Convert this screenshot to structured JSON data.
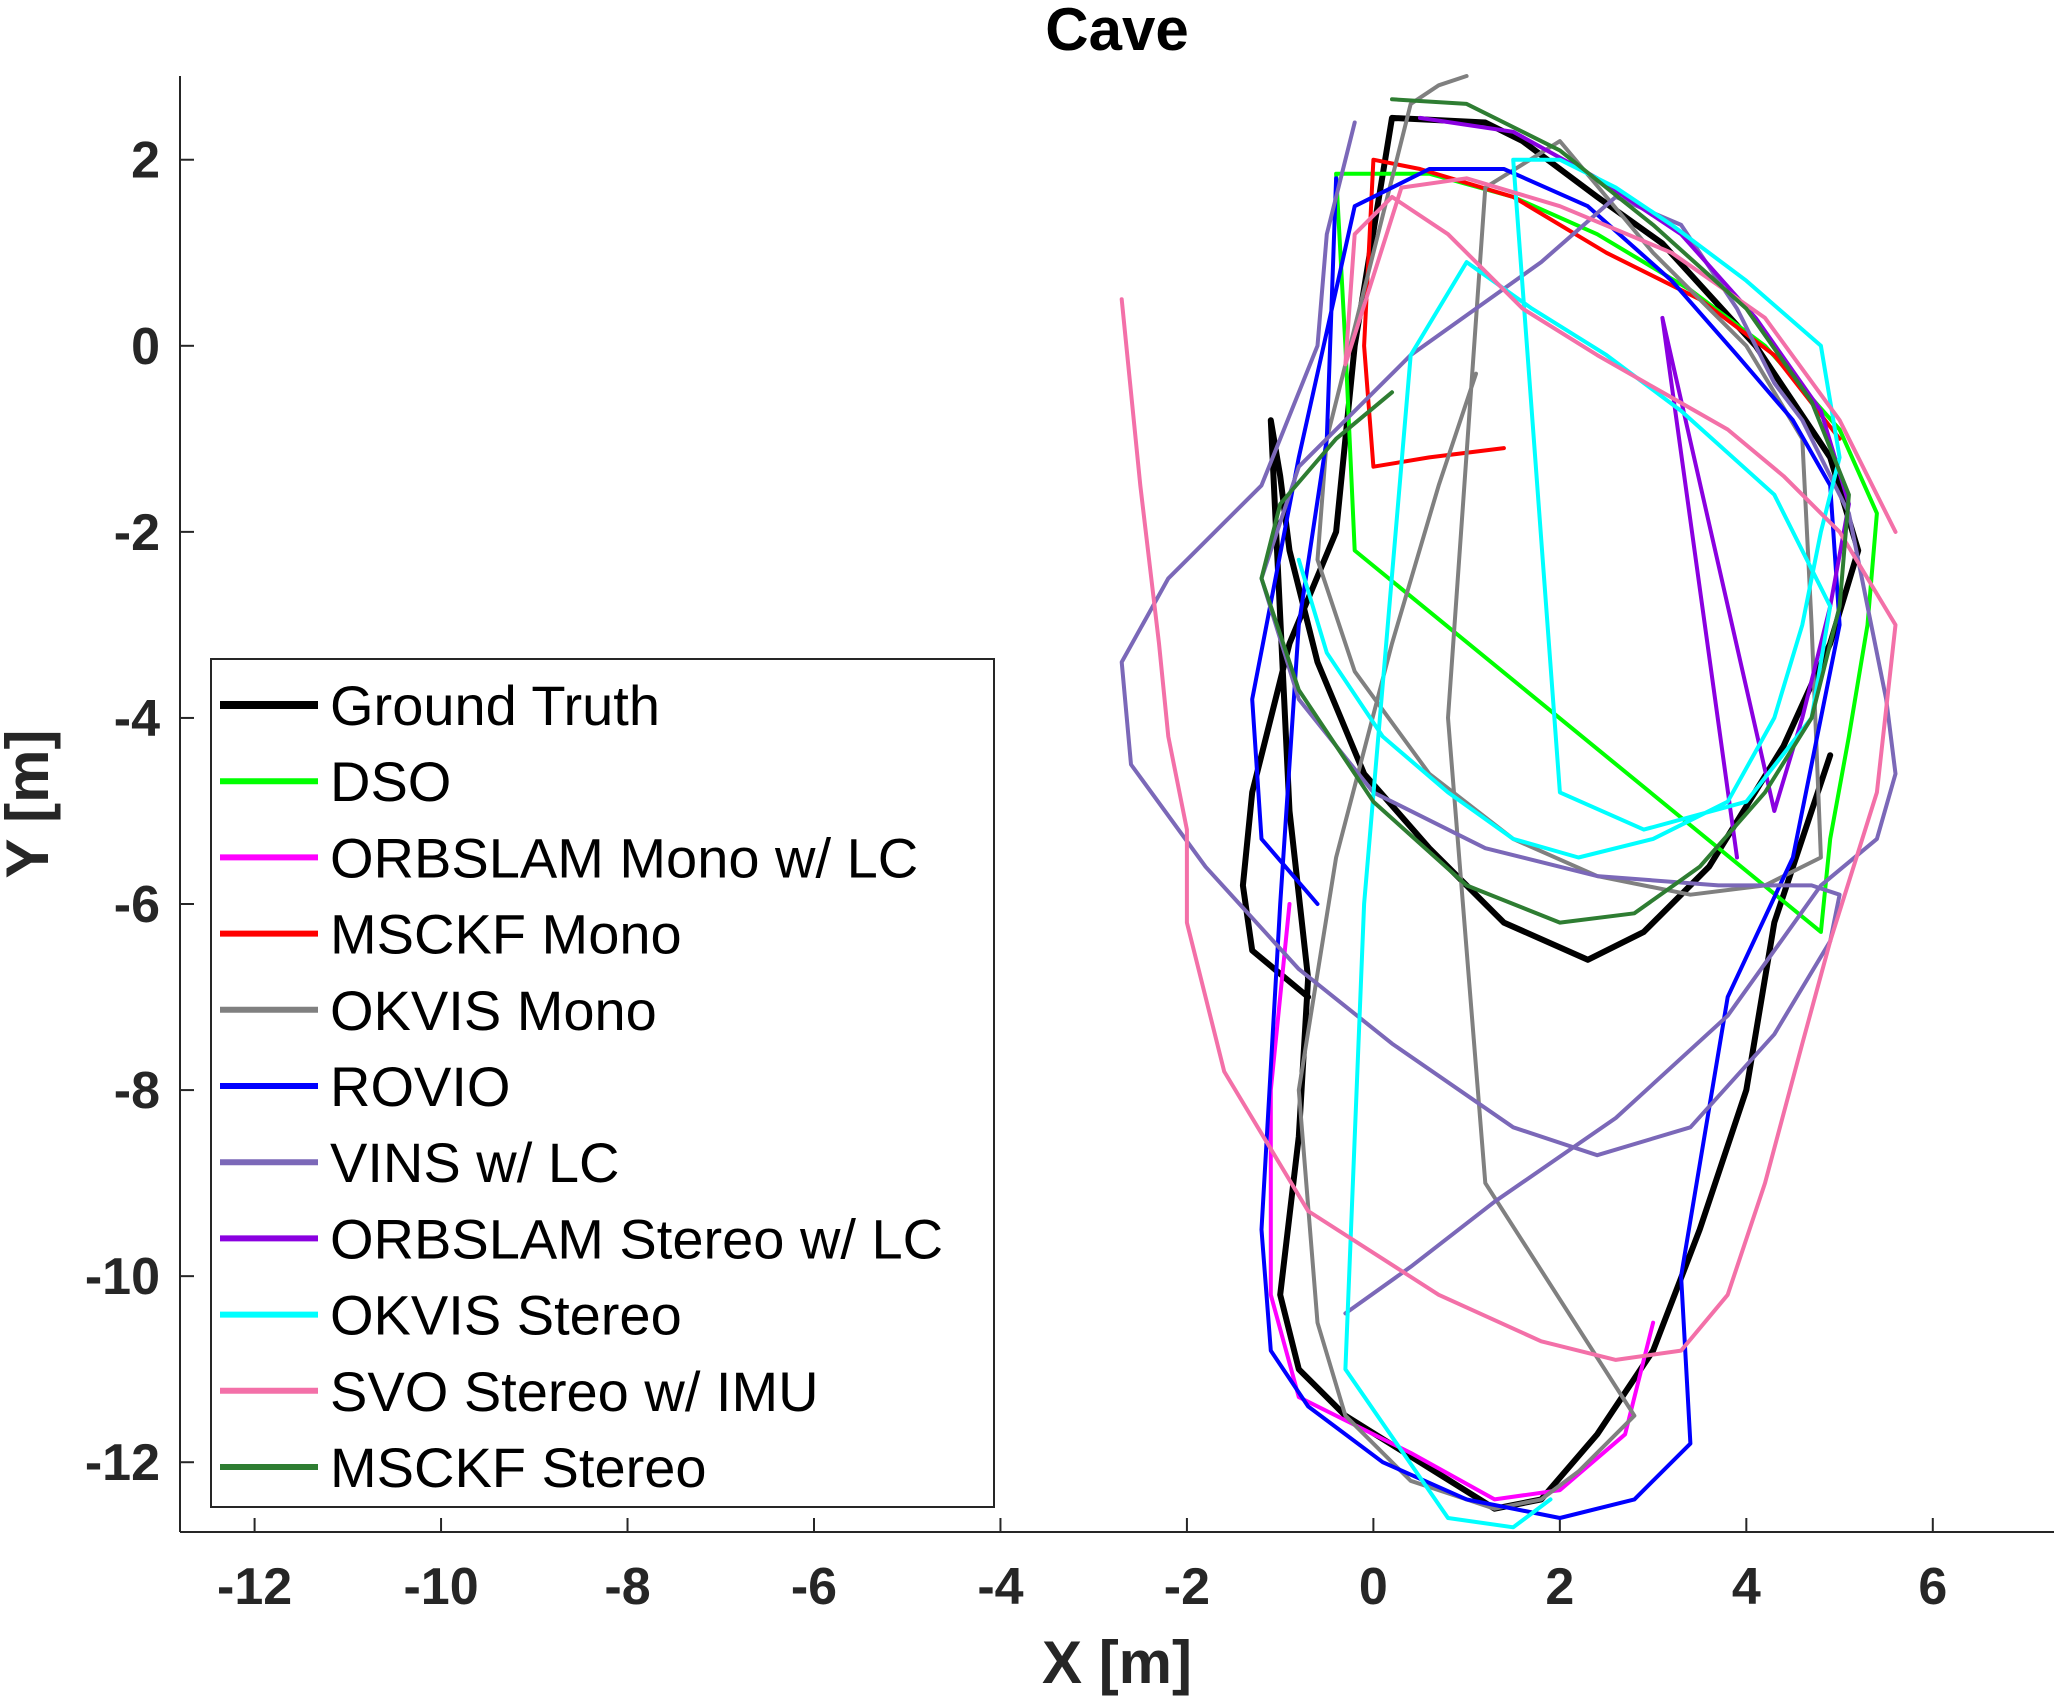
{
  "chart_data": {
    "type": "line",
    "title": "Cave",
    "xlabel": "X [m]",
    "ylabel": "Y [m]",
    "xlim": [
      -12.8,
      7.3
    ],
    "ylim": [
      -12.75,
      2.9
    ],
    "xticks": [
      -12,
      -10,
      -8,
      -6,
      -4,
      -2,
      0,
      2,
      4,
      6
    ],
    "yticks": [
      2,
      0,
      -2,
      -4,
      -6,
      -8,
      -10,
      -12
    ],
    "xtick_labels": [
      "-12",
      "-10",
      "-8",
      "-6",
      "-4",
      "-2",
      "0",
      "2",
      "4",
      "6"
    ],
    "ytick_labels": [
      "2",
      "0",
      "-2",
      "-4",
      "-6",
      "-8",
      "-10",
      "-12"
    ],
    "grid": false,
    "legend_position": "bottom-left",
    "series": [
      {
        "name": "Ground Truth",
        "color": "#000000",
        "width": 3,
        "x": [
          -0.7,
          -1.3,
          -1.4,
          -1.3,
          -0.9,
          -0.4,
          -0.2,
          0.2,
          1.2,
          1.6,
          2.4,
          3.1,
          4.1,
          4.5,
          4.9,
          5.2,
          4.9,
          4.4,
          3.6,
          2.9,
          2.3,
          1.4,
          0.6,
          -0.1,
          -0.6,
          -0.9,
          -1.0,
          -1.1,
          -0.9,
          -0.7,
          -0.8,
          -1.0,
          -0.8,
          -0.3,
          0.5,
          1.3,
          1.8,
          2.4,
          3.0,
          3.5,
          4.0,
          4.3,
          4.9
        ],
        "y": [
          -7.0,
          -6.5,
          -5.8,
          -4.8,
          -3.2,
          -2.0,
          0.0,
          2.45,
          2.4,
          2.2,
          1.6,
          1.1,
          0.0,
          -0.6,
          -1.2,
          -2.2,
          -3.2,
          -4.3,
          -5.6,
          -6.3,
          -6.6,
          -6.2,
          -5.4,
          -4.6,
          -3.4,
          -2.2,
          -1.4,
          -0.8,
          -5.0,
          -6.8,
          -8.5,
          -10.2,
          -11.0,
          -11.5,
          -12.0,
          -12.5,
          -12.4,
          -11.7,
          -10.8,
          -9.5,
          -8.0,
          -6.2,
          -4.4
        ]
      },
      {
        "name": "DSO",
        "color": "#00ff00",
        "width": 2,
        "x": [
          -0.4,
          0.6,
          1.5,
          2.4,
          3.4,
          4.2,
          5.0,
          5.4,
          5.3,
          5.1,
          4.9,
          4.8,
          -0.2,
          -0.3,
          -0.4
        ],
        "y": [
          1.85,
          1.85,
          1.6,
          1.2,
          0.6,
          0.0,
          -0.9,
          -1.8,
          -3.0,
          -4.2,
          -5.3,
          -6.3,
          -2.2,
          0.0,
          1.85
        ]
      },
      {
        "name": "ORBSLAM Mono w/ LC",
        "color": "#ff00ff",
        "width": 2,
        "x": [
          -0.9,
          -1.1,
          -1.1,
          -0.8,
          0.4,
          1.3,
          2.0,
          2.7,
          3.0
        ],
        "y": [
          -6.0,
          -8.0,
          -10.2,
          -11.3,
          -11.9,
          -12.4,
          -12.3,
          -11.7,
          -10.5
        ]
      },
      {
        "name": "MSCKF Mono",
        "color": "#ff0000",
        "width": 2,
        "x": [
          1.4,
          0.6,
          0.0,
          -0.1,
          0.0,
          0.5,
          1.5,
          2.5,
          3.5,
          4.3,
          5.0
        ],
        "y": [
          -1.1,
          -1.2,
          -1.3,
          0.0,
          2.0,
          1.9,
          1.6,
          1.0,
          0.5,
          -0.1,
          -1.0
        ]
      },
      {
        "name": "OKVIS Mono",
        "color": "#808080",
        "width": 2,
        "x": [
          1.1,
          0.7,
          0.2,
          -0.4,
          -0.8,
          -0.6,
          -0.3,
          0.4,
          1.3,
          1.8,
          2.2,
          2.8,
          1.2,
          0.8,
          1.2,
          2.0,
          3.0,
          4.0,
          4.6,
          4.7,
          4.8,
          4.2,
          3.4,
          2.4,
          1.5,
          0.6,
          -0.2,
          -0.6,
          -0.5,
          0.4,
          0.7,
          1.0
        ],
        "y": [
          -0.3,
          -1.5,
          -3.2,
          -5.5,
          -8.0,
          -10.5,
          -11.5,
          -12.2,
          -12.5,
          -12.4,
          -12.1,
          -11.5,
          -9.0,
          -4.0,
          1.7,
          2.2,
          1.0,
          0.0,
          -1.0,
          -3.0,
          -5.5,
          -5.8,
          -5.9,
          -5.7,
          -5.3,
          -4.6,
          -3.5,
          -2.3,
          -1.0,
          2.6,
          2.8,
          2.9
        ]
      },
      {
        "name": "ROVIO",
        "color": "#0000ff",
        "width": 2,
        "x": [
          -0.4,
          -0.5,
          -0.8,
          -1.0,
          -1.2,
          -1.1,
          -0.7,
          0.1,
          1.0,
          2.0,
          2.8,
          3.4,
          3.3,
          3.8,
          4.5,
          5.0,
          4.9,
          4.5,
          3.9,
          3.2,
          2.3,
          1.4,
          0.6,
          -0.2,
          -0.8,
          -1.3,
          -1.2,
          -0.6
        ],
        "y": [
          1.8,
          -1.0,
          -3.0,
          -6.0,
          -9.5,
          -10.8,
          -11.4,
          -12.0,
          -12.4,
          -12.6,
          -12.4,
          -11.8,
          -10.0,
          -7.0,
          -5.5,
          -3.0,
          -1.5,
          -0.8,
          -0.1,
          0.7,
          1.5,
          1.9,
          1.9,
          1.5,
          -1.2,
          -3.8,
          -5.3,
          -6.0
        ]
      },
      {
        "name": "VINS w/ LC",
        "color": "#7b68b8",
        "width": 2,
        "x": [
          -0.2,
          -0.5,
          -0.6,
          -1.2,
          -2.2,
          -2.7,
          -2.6,
          -1.8,
          -0.8,
          0.2,
          1.5,
          2.4,
          3.4,
          4.3,
          4.9,
          5.0,
          4.7,
          3.7,
          2.4,
          1.2,
          0.0,
          -0.8,
          -1.2,
          -0.8,
          0.4,
          1.8,
          2.6,
          3.3,
          3.9,
          4.3,
          4.6,
          5.1,
          5.3,
          5.5,
          5.6,
          5.4,
          4.8,
          3.8,
          2.6,
          1.3,
          0.4,
          -0.3
        ],
        "y": [
          2.4,
          1.2,
          0.0,
          -1.5,
          -2.5,
          -3.4,
          -4.5,
          -5.6,
          -6.7,
          -7.5,
          -8.4,
          -8.7,
          -8.4,
          -7.4,
          -6.4,
          -5.9,
          -5.8,
          -5.8,
          -5.7,
          -5.4,
          -4.8,
          -3.8,
          -2.5,
          -1.3,
          -0.1,
          0.9,
          1.6,
          1.3,
          0.4,
          -0.4,
          -0.8,
          -1.8,
          -2.8,
          -3.8,
          -4.6,
          -5.3,
          -5.8,
          -7.2,
          -8.3,
          -9.2,
          -9.9,
          -10.4
        ]
      },
      {
        "name": "ORBSLAM Stereo w/ LC",
        "color": "#8a00e0",
        "width": 2,
        "x": [
          0.5,
          1.5,
          2.4,
          3.3,
          4.1,
          4.8,
          5.1,
          4.9,
          4.6,
          4.3,
          3.1,
          3.9
        ],
        "y": [
          2.45,
          2.3,
          1.8,
          1.2,
          0.3,
          -0.7,
          -1.7,
          -2.8,
          -4.0,
          -5.0,
          0.3,
          -5.5
        ]
      },
      {
        "name": "OKVIS Stereo",
        "color": "#00ffff",
        "width": 2,
        "x": [
          -0.8,
          -0.5,
          0.1,
          0.8,
          1.5,
          2.2,
          3.0,
          3.8,
          4.3,
          4.6,
          4.8,
          5.0,
          4.8,
          4.0,
          3.2,
          2.6,
          2.0,
          1.5,
          2.0,
          2.9,
          4.0,
          4.7,
          4.9,
          4.3,
          3.3,
          2.5,
          1.7,
          1.0,
          0.4,
          -0.1,
          -0.3,
          0.8,
          1.5,
          1.9
        ],
        "y": [
          -2.3,
          -3.3,
          -4.2,
          -4.8,
          -5.3,
          -5.5,
          -5.3,
          -4.9,
          -4.0,
          -3.0,
          -2.0,
          -1.2,
          0.0,
          0.7,
          1.3,
          1.7,
          2.0,
          2.0,
          -4.8,
          -5.2,
          -4.9,
          -4.0,
          -2.8,
          -1.6,
          -0.7,
          -0.1,
          0.4,
          0.9,
          -0.1,
          -6.0,
          -11.0,
          -12.6,
          -12.7,
          -12.4
        ]
      },
      {
        "name": "SVO Stereo w/ IMU",
        "color": "#f370a8",
        "width": 2,
        "x": [
          -2.7,
          -2.5,
          -2.3,
          -2.2,
          -2.0,
          -2.0,
          -1.6,
          -0.7,
          0.7,
          1.8,
          2.6,
          3.3,
          3.8,
          4.2,
          4.6,
          4.9,
          5.4,
          5.6,
          5.0,
          4.4,
          3.8,
          3.1,
          2.4,
          1.6,
          0.8,
          0.2,
          -0.2,
          -0.3,
          0.3,
          1.0,
          2.0,
          3.2,
          4.2,
          5.0,
          5.6
        ],
        "y": [
          0.5,
          -1.5,
          -3.2,
          -4.2,
          -5.2,
          -6.2,
          -7.8,
          -9.3,
          -10.2,
          -10.7,
          -10.9,
          -10.8,
          -10.2,
          -9.0,
          -7.5,
          -6.4,
          -4.8,
          -3.0,
          -2.0,
          -1.4,
          -0.9,
          -0.5,
          -0.1,
          0.4,
          1.2,
          1.6,
          1.2,
          -0.2,
          1.7,
          1.8,
          1.5,
          1.0,
          0.3,
          -0.8,
          -2.0
        ]
      },
      {
        "name": "MSCKF Stereo",
        "color": "#2e7d32",
        "width": 2,
        "x": [
          0.2,
          1.0,
          2.0,
          3.0,
          4.0,
          4.7,
          5.1,
          5.0,
          4.7,
          4.2,
          3.5,
          2.8,
          2.0,
          1.0,
          0.0,
          -0.8,
          -1.2,
          -1.0,
          -0.4,
          0.2
        ],
        "y": [
          2.65,
          2.6,
          2.1,
          1.3,
          0.4,
          -0.6,
          -1.6,
          -2.8,
          -4.0,
          -4.8,
          -5.6,
          -6.1,
          -6.2,
          -5.8,
          -4.9,
          -3.7,
          -2.5,
          -1.7,
          -1.0,
          -0.5
        ]
      }
    ]
  }
}
